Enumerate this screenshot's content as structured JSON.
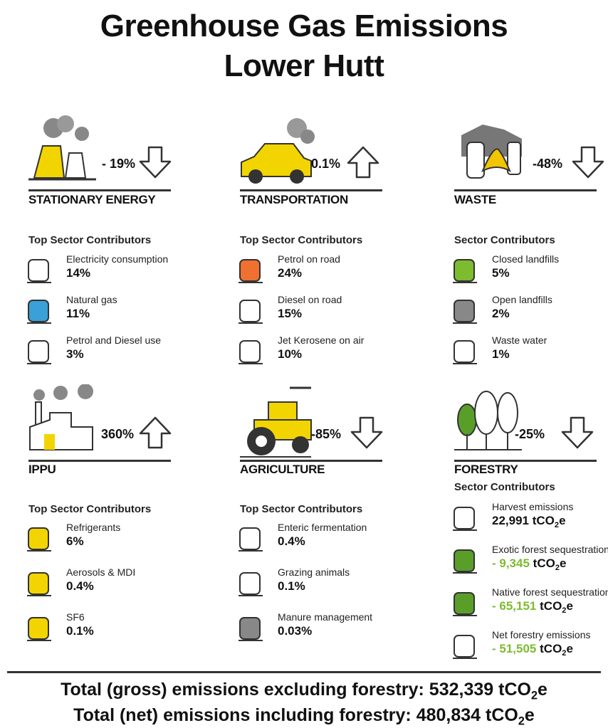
{
  "title": [
    "Greenhouse Gas Emissions",
    "Lower Hutt"
  ],
  "unit": {
    "base": "tCO",
    "sub": "2",
    "suffix": "e"
  },
  "sectors": [
    {
      "name": "STATIONARY ENERGY",
      "change": "- 19%",
      "contributors_title": "Top Sector Contributors",
      "contributors": [
        {
          "label": "Electricity consumption",
          "value": "14%"
        },
        {
          "label": "Natural gas",
          "value": "11%"
        },
        {
          "label": "Petrol and Diesel use",
          "value": "3%"
        }
      ]
    },
    {
      "name": "TRANSPORTATION",
      "change": "0.1%",
      "contributors_title": "Top Sector Contributors",
      "contributors": [
        {
          "label": "Petrol on road",
          "value": "24%"
        },
        {
          "label": "Diesel on road",
          "value": "15%"
        },
        {
          "label": "Jet Kerosene on air",
          "value": "10%"
        }
      ]
    },
    {
      "name": "WASTE",
      "change": "-48%",
      "contributors_title": "Sector Contributors",
      "contributors": [
        {
          "label": "Closed landfills",
          "value": "5%"
        },
        {
          "label": "Open landfills",
          "value": "2%"
        },
        {
          "label": "Waste water",
          "value": "1%"
        }
      ]
    },
    {
      "name": "IPPU",
      "change": "360%",
      "contributors_title": "Top Sector Contributors",
      "contributors": [
        {
          "label": "Refrigerants",
          "value": "6%"
        },
        {
          "label": "Aerosols & MDI",
          "value": "0.4%"
        },
        {
          "label": "SF6",
          "value": "0.1%"
        }
      ]
    },
    {
      "name": "AGRICULTURE",
      "change": "-85%",
      "contributors_title": "Top Sector Contributors",
      "contributors": [
        {
          "label": "Enteric fermentation",
          "value": "0.4%"
        },
        {
          "label": "Grazing animals",
          "value": "0.1%"
        },
        {
          "label": "Manure management",
          "value": "0.03%"
        }
      ]
    },
    {
      "name": "FORESTRY",
      "change": "-25%",
      "contributors_title": "Sector Contributors",
      "contributors": [
        {
          "label": "Harvest emissions",
          "value": "22,991"
        },
        {
          "label": "Exotic forest sequestration",
          "value": "- 9,345"
        },
        {
          "label": "Native forest sequestration",
          "value": "- 65,151"
        },
        {
          "label": "Net forestry emissions",
          "value": "- 51,505"
        }
      ]
    }
  ],
  "totals": [
    {
      "label": "Total (gross) emissions excluding forestry:",
      "value": "532,339"
    },
    {
      "label": "Total (net) emissions including forestry:",
      "value": "480,834"
    }
  ]
}
